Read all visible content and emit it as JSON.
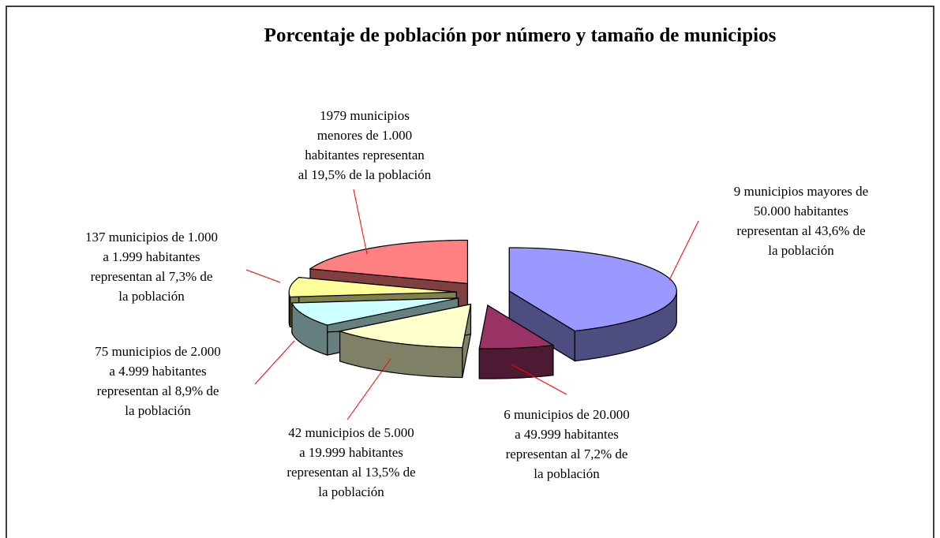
{
  "chart_data": {
    "type": "pie3d",
    "title": "Porcentaje de población por número y tamaño de municipios",
    "categories": [
      [
        "9 municipios mayores de",
        "50.000 habitantes",
        "representan al 43,6% de",
        "la población"
      ],
      [
        "6 municipios de 20.000",
        "a 49.999 habitantes",
        "representan al 7,2% de",
        "la población"
      ],
      [
        "42 municipios de 5.000",
        "a 19.999 habitantes",
        "representan al 13,5% de",
        "la población"
      ],
      [
        "75 municipios de 2.000",
        "a 4.999 habitantes",
        "representan al 8,9% de",
        "la población"
      ],
      [
        "137 municipios de 1.000",
        "a 1.999 habitantes",
        "representan al 7,3% de",
        "la población"
      ],
      [
        "1979 municipios",
        "menores de 1.000",
        "habitantes representan",
        "al 19,5% de la población"
      ]
    ],
    "values": [
      43.6,
      7.2,
      13.5,
      8.9,
      7.3,
      19.5
    ],
    "colors": [
      "#9999ff",
      "#993366",
      "#ffffcc",
      "#ccffff",
      "#ffff99",
      "#ff8080"
    ]
  }
}
